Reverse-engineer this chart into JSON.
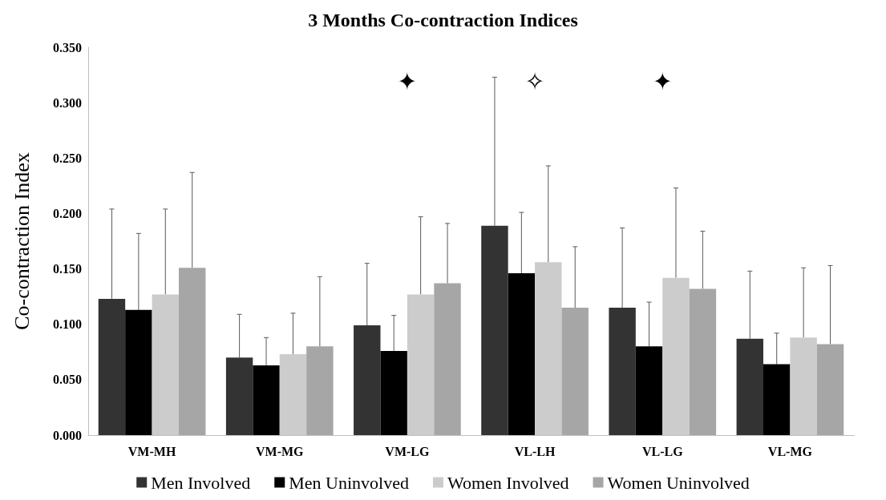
{
  "chart_data": {
    "type": "bar",
    "title": "3 Months Co-contraction Indices",
    "ylabel": "Co-contraction Index",
    "categories": [
      "VM-MH",
      "VM-MG",
      "VM-LG",
      "VL-LH",
      "VL-LG",
      "VL-MG"
    ],
    "series": [
      {
        "name": "Men Involved",
        "color": "#333333",
        "values": [
          0.123,
          0.07,
          0.099,
          0.189,
          0.115,
          0.087
        ],
        "errors": [
          [
            0.123,
            0.204
          ],
          [
            0.07,
            0.109
          ],
          [
            0.099,
            0.155
          ],
          [
            0.189,
            0.323
          ],
          [
            0.115,
            0.187
          ],
          [
            0.087,
            0.148
          ]
        ]
      },
      {
        "name": "Men Uninvolved",
        "color": "#000000",
        "values": [
          0.113,
          0.063,
          0.076,
          0.146,
          0.08,
          0.064
        ],
        "errors": [
          [
            0.113,
            0.182
          ],
          [
            0.063,
            0.088
          ],
          [
            0.076,
            0.108
          ],
          [
            0.146,
            0.201
          ],
          [
            0.08,
            0.12
          ],
          [
            0.064,
            0.092
          ]
        ]
      },
      {
        "name": "Women Involved",
        "color": "#cccccc",
        "values": [
          0.127,
          0.073,
          0.127,
          0.156,
          0.142,
          0.088
        ],
        "errors": [
          [
            0.127,
            0.204
          ],
          [
            0.073,
            0.11
          ],
          [
            0.127,
            0.197
          ],
          [
            0.156,
            0.243
          ],
          [
            0.142,
            0.223
          ],
          [
            0.088,
            0.151
          ]
        ]
      },
      {
        "name": "Women Uninvolved",
        "color": "#a6a6a6",
        "values": [
          0.151,
          0.08,
          0.137,
          0.115,
          0.132,
          0.082
        ],
        "errors": [
          [
            0.151,
            0.237
          ],
          [
            0.08,
            0.143
          ],
          [
            0.137,
            0.191
          ],
          [
            0.115,
            0.17
          ],
          [
            0.132,
            0.184
          ],
          [
            0.082,
            0.153
          ]
        ]
      }
    ],
    "ylim": [
      0,
      0.35
    ],
    "yticks": [
      {
        "value": 0,
        "label": "0.000"
      },
      {
        "value": 0.05,
        "label": "0.050"
      },
      {
        "value": 0.1,
        "label": "0.100"
      },
      {
        "value": 0.15,
        "label": "0.150"
      },
      {
        "value": 0.2,
        "label": "0.200"
      },
      {
        "value": 0.25,
        "label": "0.250"
      },
      {
        "value": 0.3,
        "label": "0.300"
      },
      {
        "value": 0.35,
        "label": "0.350"
      }
    ],
    "annotations": [
      "✦",
      "✧",
      "✦"
    ],
    "grid": false,
    "legend": "bottom"
  }
}
